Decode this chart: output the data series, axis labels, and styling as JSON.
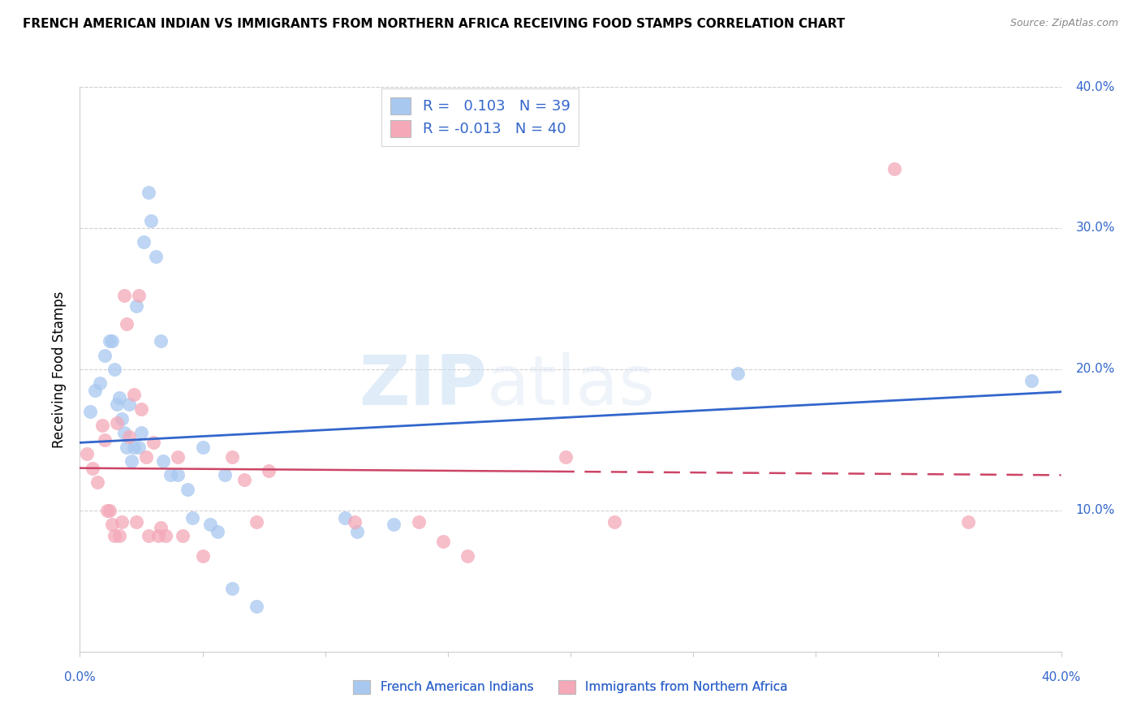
{
  "title": "FRENCH AMERICAN INDIAN VS IMMIGRANTS FROM NORTHERN AFRICA RECEIVING FOOD STAMPS CORRELATION CHART",
  "source": "Source: ZipAtlas.com",
  "ylabel": "Receiving Food Stamps",
  "xlim": [
    0.0,
    0.4
  ],
  "ylim": [
    0.0,
    0.4
  ],
  "yticks": [
    0.0,
    0.1,
    0.2,
    0.3,
    0.4
  ],
  "ytick_labels": [
    "",
    "10.0%",
    "20.0%",
    "30.0%",
    "40.0%"
  ],
  "xticks": [
    0.0,
    0.05,
    0.1,
    0.15,
    0.2,
    0.25,
    0.3,
    0.35,
    0.4
  ],
  "watermark_zip": "ZIP",
  "watermark_atlas": "atlas",
  "legend_blue_r": "0.103",
  "legend_blue_n": "39",
  "legend_pink_r": "-0.013",
  "legend_pink_n": "40",
  "legend_label_blue": "French American Indians",
  "legend_label_pink": "Immigrants from Northern Africa",
  "blue_color": "#A8C8F0",
  "pink_color": "#F4A8B8",
  "blue_line_color": "#3366CC",
  "pink_line_color": "#CC4466",
  "blue_scatter": [
    [
      0.004,
      0.17
    ],
    [
      0.006,
      0.185
    ],
    [
      0.008,
      0.19
    ],
    [
      0.01,
      0.21
    ],
    [
      0.012,
      0.22
    ],
    [
      0.013,
      0.22
    ],
    [
      0.014,
      0.2
    ],
    [
      0.015,
      0.175
    ],
    [
      0.016,
      0.18
    ],
    [
      0.017,
      0.165
    ],
    [
      0.018,
      0.155
    ],
    [
      0.019,
      0.145
    ],
    [
      0.02,
      0.175
    ],
    [
      0.021,
      0.135
    ],
    [
      0.022,
      0.145
    ],
    [
      0.023,
      0.245
    ],
    [
      0.024,
      0.145
    ],
    [
      0.025,
      0.155
    ],
    [
      0.026,
      0.29
    ],
    [
      0.028,
      0.325
    ],
    [
      0.029,
      0.305
    ],
    [
      0.031,
      0.28
    ],
    [
      0.033,
      0.22
    ],
    [
      0.034,
      0.135
    ],
    [
      0.037,
      0.125
    ],
    [
      0.04,
      0.125
    ],
    [
      0.044,
      0.115
    ],
    [
      0.046,
      0.095
    ],
    [
      0.05,
      0.145
    ],
    [
      0.053,
      0.09
    ],
    [
      0.056,
      0.085
    ],
    [
      0.059,
      0.125
    ],
    [
      0.062,
      0.045
    ],
    [
      0.072,
      0.032
    ],
    [
      0.108,
      0.095
    ],
    [
      0.113,
      0.085
    ],
    [
      0.128,
      0.09
    ],
    [
      0.268,
      0.197
    ],
    [
      0.388,
      0.192
    ]
  ],
  "pink_scatter": [
    [
      0.003,
      0.14
    ],
    [
      0.005,
      0.13
    ],
    [
      0.007,
      0.12
    ],
    [
      0.009,
      0.16
    ],
    [
      0.01,
      0.15
    ],
    [
      0.011,
      0.1
    ],
    [
      0.012,
      0.1
    ],
    [
      0.013,
      0.09
    ],
    [
      0.014,
      0.082
    ],
    [
      0.015,
      0.162
    ],
    [
      0.016,
      0.082
    ],
    [
      0.017,
      0.092
    ],
    [
      0.018,
      0.252
    ],
    [
      0.019,
      0.232
    ],
    [
      0.02,
      0.152
    ],
    [
      0.022,
      0.182
    ],
    [
      0.023,
      0.092
    ],
    [
      0.024,
      0.252
    ],
    [
      0.025,
      0.172
    ],
    [
      0.027,
      0.138
    ],
    [
      0.028,
      0.082
    ],
    [
      0.03,
      0.148
    ],
    [
      0.032,
      0.082
    ],
    [
      0.033,
      0.088
    ],
    [
      0.035,
      0.082
    ],
    [
      0.04,
      0.138
    ],
    [
      0.042,
      0.082
    ],
    [
      0.05,
      0.068
    ],
    [
      0.062,
      0.138
    ],
    [
      0.067,
      0.122
    ],
    [
      0.072,
      0.092
    ],
    [
      0.077,
      0.128
    ],
    [
      0.112,
      0.092
    ],
    [
      0.138,
      0.092
    ],
    [
      0.148,
      0.078
    ],
    [
      0.158,
      0.068
    ],
    [
      0.198,
      0.138
    ],
    [
      0.218,
      0.092
    ],
    [
      0.332,
      0.342
    ],
    [
      0.362,
      0.092
    ]
  ],
  "blue_line_x": [
    0.0,
    0.4
  ],
  "blue_line_y": [
    0.148,
    0.184
  ],
  "pink_line_x": [
    0.0,
    0.4
  ],
  "pink_line_y": [
    0.13,
    0.125
  ],
  "pink_line_dash_start": 0.195
}
